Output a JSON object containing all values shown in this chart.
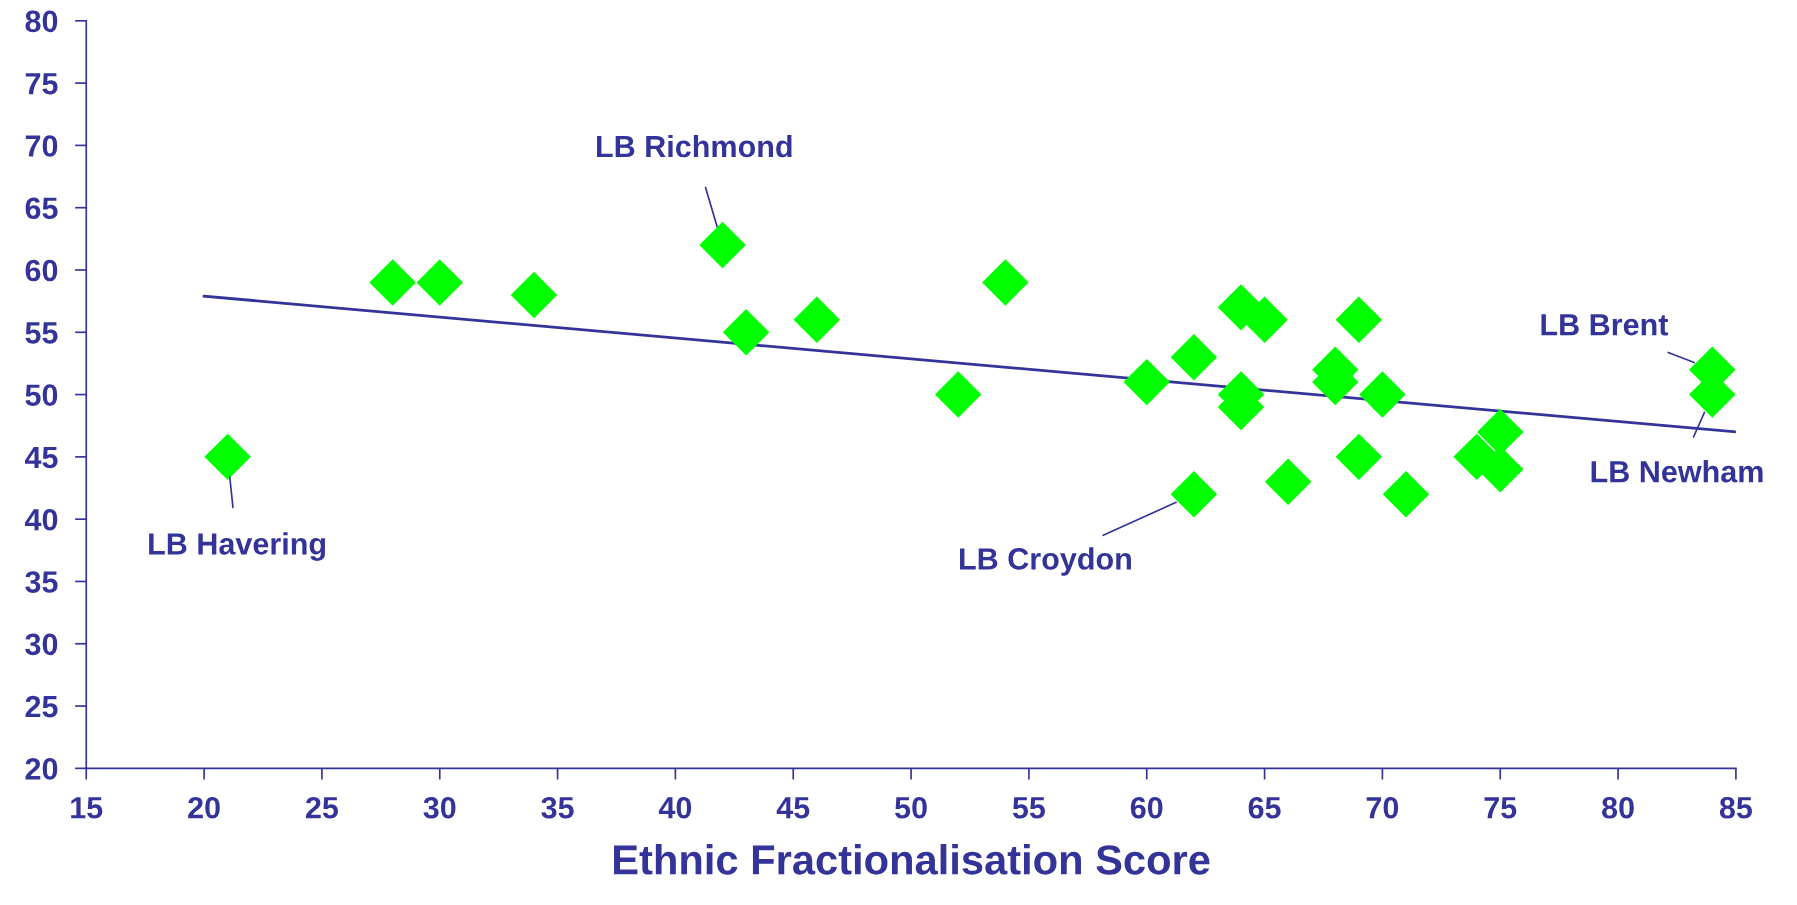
{
  "chart_data": {
    "type": "scatter",
    "xlabel": "Ethnic Fractionalisation Score",
    "xlim": [
      15,
      85
    ],
    "xticks": [
      15,
      20,
      25,
      30,
      35,
      40,
      45,
      50,
      55,
      60,
      65,
      70,
      75,
      80,
      85
    ],
    "ylim": [
      20,
      80
    ],
    "yticks": [
      20,
      25,
      30,
      35,
      40,
      45,
      50,
      55,
      60,
      65,
      70,
      75,
      80
    ],
    "grid": false,
    "legend": false,
    "marker": "diamond",
    "series": [
      {
        "color": "#00ff00",
        "x": [
          21,
          28,
          30,
          34,
          42,
          43,
          46,
          52,
          54,
          60,
          62,
          62,
          64,
          64,
          64,
          65,
          66,
          68,
          68,
          69,
          69,
          70,
          71,
          74,
          75,
          75,
          84,
          84
        ],
        "values": [
          45,
          59,
          59,
          58,
          62,
          55,
          56,
          50,
          59,
          51,
          53,
          42,
          57,
          50,
          49,
          56,
          43,
          52,
          51,
          56,
          45,
          50,
          42,
          45,
          47,
          44,
          52,
          50
        ]
      },
      {
        "type": "line",
        "color": "#333399",
        "marker": "none",
        "x": [
          20,
          85
        ],
        "values": [
          57.9,
          47.0
        ]
      }
    ],
    "annotations": [
      {
        "text": "LB Richmond",
        "x": 42,
        "y": 62
      },
      {
        "text": "LB Havering",
        "x": 21,
        "y": 45
      },
      {
        "text": "LB Croydon",
        "x": 62,
        "y": 42
      },
      {
        "text": "LB Brent",
        "x": 84,
        "y": 52
      },
      {
        "text": "LB Newham",
        "x": 84,
        "y": 50
      }
    ]
  }
}
